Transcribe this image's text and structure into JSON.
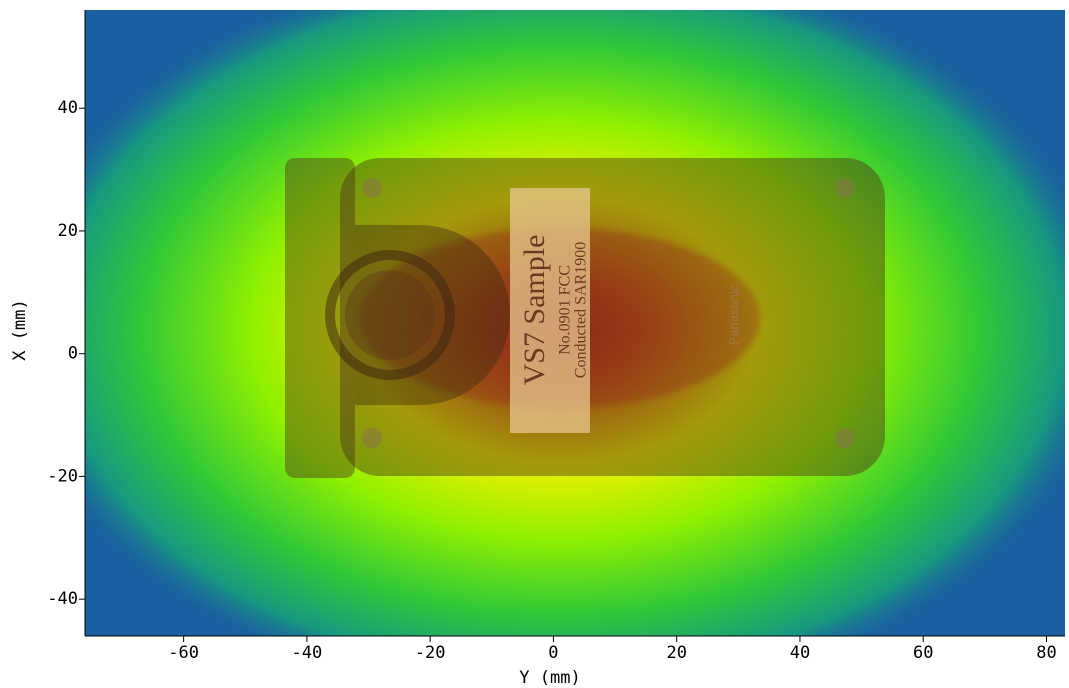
{
  "chart_data": {
    "type": "heatmap",
    "xlabel": "Y (mm)",
    "ylabel": "X (mm)",
    "xlim": [
      -76,
      83
    ],
    "xticks": [
      -60,
      -40,
      -20,
      0,
      20,
      40,
      60,
      80
    ],
    "ylim": [
      -46,
      56
    ],
    "yticks": [
      -40,
      -20,
      0,
      20,
      40
    ],
    "annotations": [
      "VS7 Sample",
      "No.0901 FCC",
      "Conducted SAR1900",
      "Panasonic"
    ]
  }
}
